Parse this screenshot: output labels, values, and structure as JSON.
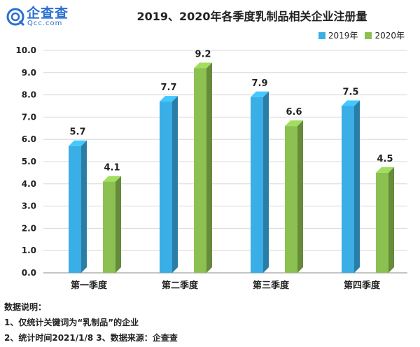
{
  "logo": {
    "name": "企查查",
    "site": "Qcc.com"
  },
  "chart_data": {
    "type": "bar",
    "title": "2019、2020年各季度乳制品相关企业注册量",
    "categories": [
      "第一季度",
      "第二季度",
      "第三季度",
      "第四季度"
    ],
    "series": [
      {
        "name": "2019年",
        "values": [
          5.7,
          7.7,
          7.9,
          7.5
        ],
        "color": "#3aaee6"
      },
      {
        "name": "2020年",
        "values": [
          4.1,
          9.2,
          6.6,
          4.5
        ],
        "color": "#8cc152"
      }
    ],
    "ylim": [
      0,
      10
    ],
    "yticks": [
      "0.0",
      "1.0",
      "2.0",
      "3.0",
      "4.0",
      "5.0",
      "6.0",
      "7.0",
      "8.0",
      "9.0",
      "10.0"
    ],
    "legend_position": "top-right",
    "grid": true
  },
  "notes": {
    "heading": "数据说明：",
    "line1": "1、仅统计关键词为“乳制品”的企业",
    "line2": "2、统计时间2021/1/8  3、数据来源：企查查"
  }
}
